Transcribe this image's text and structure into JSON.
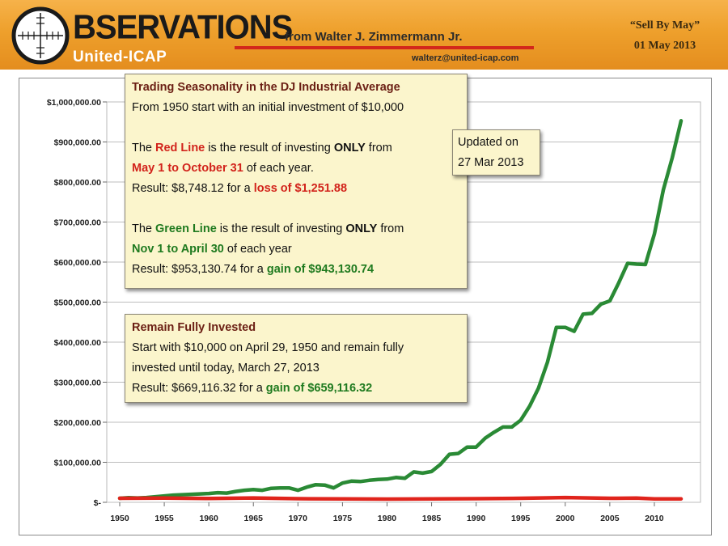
{
  "header": {
    "brand": "BSERVATIONS",
    "subbrand": "United-ICAP",
    "author": "from Walter J. Zimmermann Jr.",
    "email": "walterz@united-icap.com",
    "sell_by": "“Sell By May”",
    "date": "01 May 2013",
    "icon": "crosshair-icon"
  },
  "box1": {
    "title": "Trading Seasonality in the DJ Industrial Average",
    "intro": "From 1950 start with an initial investment of $10,000",
    "red_p1": "The ",
    "red_p2": "Red Line",
    "red_p3": " is the result of investing ",
    "red_p4": "ONLY",
    "red_p5": " from",
    "red_period": "May 1 to October 31",
    "red_period_tail": " of each year.",
    "red_result_p1": "Result: $8,748.12 for a ",
    "red_result_p2": "loss of $1,251.88",
    "green_p1": "The ",
    "green_p2": "Green Line",
    "green_p3": " is the result of investing ",
    "green_p4": "ONLY",
    "green_p5": " from",
    "green_period": "Nov 1 to April 30",
    "green_period_tail": " of each year",
    "green_result_p1": "Result: $953,130.74 for a ",
    "green_result_p2": "gain of $943,130.74"
  },
  "box2": {
    "line1": "Updated on",
    "line2": "27 Mar 2013"
  },
  "box3": {
    "title": "Remain Fully Invested",
    "line1": "Start with $10,000 on April 29, 1950 and remain fully",
    "line2": "invested until today, March 27, 2013",
    "result_p1": "Result: $669,116.32 for a ",
    "result_p2": "gain of $659,116.32"
  },
  "chart_data": {
    "type": "line",
    "title": "",
    "xlabel": "",
    "ylabel": "",
    "xlim": [
      1950,
      2013
    ],
    "ylim": [
      0,
      1000000
    ],
    "x_ticks": [
      1950,
      1955,
      1960,
      1965,
      1970,
      1975,
      1980,
      1985,
      1990,
      1995,
      2000,
      2005,
      2010
    ],
    "y_ticks": [
      0,
      100000,
      200000,
      300000,
      400000,
      500000,
      600000,
      700000,
      800000,
      900000,
      1000000
    ],
    "y_tick_labels": [
      "$-",
      "$100,000.00",
      "$200,000.00",
      "$300,000.00",
      "$400,000.00",
      "$500,000.00",
      "$600,000.00",
      "$700,000.00",
      "$800,000.00",
      "$900,000.00",
      "$1,000,000.00"
    ],
    "grid": "horizontal",
    "colors": {
      "red": "#e0241c",
      "green": "#2a8a35"
    },
    "series": [
      {
        "color": "#2a8a35",
        "x": [
          1950,
          1951,
          1952,
          1953,
          1954,
          1955,
          1956,
          1957,
          1958,
          1959,
          1960,
          1961,
          1962,
          1963,
          1964,
          1965,
          1966,
          1967,
          1968,
          1969,
          1970,
          1971,
          1972,
          1973,
          1974,
          1975,
          1976,
          1977,
          1978,
          1979,
          1980,
          1981,
          1982,
          1983,
          1984,
          1985,
          1986,
          1987,
          1988,
          1989,
          1990,
          1991,
          1992,
          1993,
          1994,
          1995,
          1996,
          1997,
          1998,
          1999,
          2000,
          2001,
          2002,
          2003,
          2004,
          2005,
          2006,
          2007,
          2008,
          2009,
          2010,
          2011,
          2012,
          2013
        ],
        "y": [
          10000,
          11500,
          11000,
          12000,
          14000,
          16000,
          18000,
          19000,
          20000,
          21000,
          22000,
          24000,
          23000,
          27000,
          30000,
          32000,
          30000,
          35000,
          36000,
          36000,
          30000,
          38000,
          44000,
          43000,
          36000,
          48000,
          53000,
          52000,
          55000,
          57000,
          58000,
          62000,
          60000,
          76000,
          73000,
          77000,
          95000,
          120000,
          122000,
          138000,
          138000,
          160000,
          175000,
          188000,
          188000,
          205000,
          240000,
          285000,
          350000,
          437000,
          437000,
          427000,
          470000,
          472000,
          495000,
          503000,
          548000,
          597000,
          595000,
          594000,
          670000,
          780000,
          860000,
          953000
        ]
      },
      {
        "color": "#e0241c",
        "x": [
          1950,
          1955,
          1960,
          1965,
          1970,
          1975,
          1980,
          1985,
          1990,
          1995,
          2000,
          2005,
          2008,
          2010,
          2013
        ],
        "y": [
          10000,
          10500,
          9500,
          11000,
          9000,
          8500,
          8000,
          8700,
          9000,
          10000,
          12000,
          10000,
          10500,
          8500,
          8748
        ]
      }
    ]
  }
}
